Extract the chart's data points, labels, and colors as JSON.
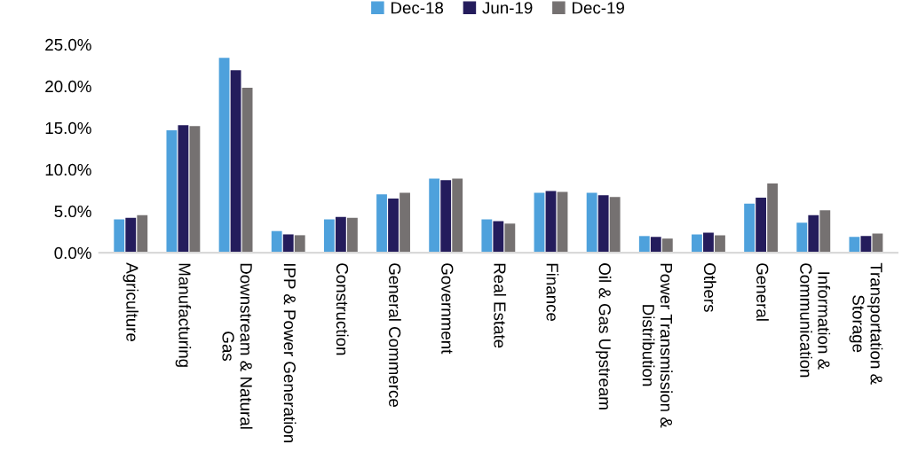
{
  "chart_data": {
    "type": "bar",
    "categories": [
      "Agriculture",
      "Manufacturing",
      "Downstream & Natural\nGas",
      "IPP & Power Generation",
      "Construction",
      "General Commerce",
      "Government",
      "Real Estate",
      "Finance",
      "Oil & Gas Upstream",
      "Power Transmission &\nDistribution",
      "Others",
      "General",
      "Information &\nCommunication",
      "Transportation &\nStorage"
    ],
    "series": [
      {
        "name": "Dec-18",
        "color": "#4ea1dc",
        "values": [
          4.0,
          14.7,
          23.4,
          2.6,
          4.0,
          7.0,
          8.9,
          4.0,
          7.2,
          7.2,
          2.0,
          2.2,
          5.9,
          3.6,
          1.9
        ]
      },
      {
        "name": "Jun-19",
        "color": "#241c5c",
        "values": [
          4.2,
          15.3,
          21.9,
          2.2,
          4.3,
          6.5,
          8.7,
          3.8,
          7.4,
          6.9,
          1.9,
          2.4,
          6.6,
          4.5,
          2.0
        ]
      },
      {
        "name": "Dec-19",
        "color": "#757171",
        "values": [
          4.5,
          15.2,
          19.8,
          2.1,
          4.2,
          7.2,
          8.9,
          3.5,
          7.3,
          6.7,
          1.7,
          2.1,
          8.3,
          5.1,
          2.3
        ]
      }
    ],
    "ylim": [
      0,
      25
    ],
    "yticks": [
      {
        "value": 0,
        "label": "0.0%"
      },
      {
        "value": 5,
        "label": "5.0%"
      },
      {
        "value": 10,
        "label": "10.0%"
      },
      {
        "value": 15,
        "label": "15.0%"
      },
      {
        "value": 20,
        "label": "20.0%"
      },
      {
        "value": 25,
        "label": "25.0%"
      }
    ],
    "legend": "top",
    "grid": false
  }
}
